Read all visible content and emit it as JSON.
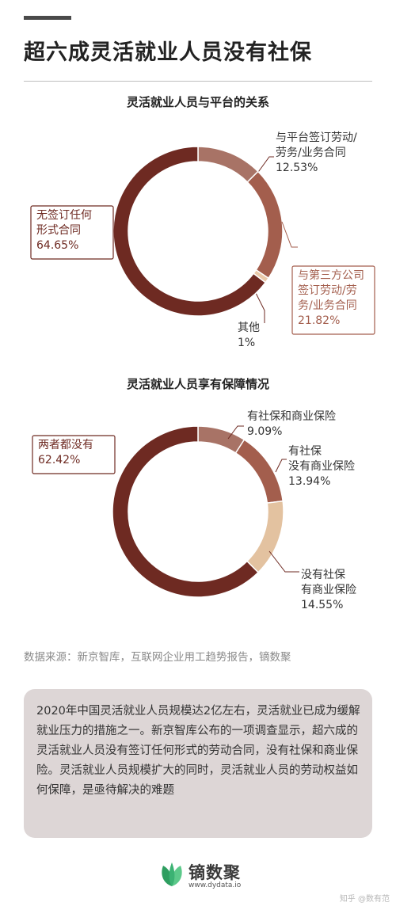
{
  "header": {
    "title": "超六成灵活就业人员没有社保"
  },
  "chart_data": [
    {
      "type": "pie",
      "title": "灵活就业人员与平台的关系",
      "series": [
        {
          "values": [
            12.53,
            21.82,
            1,
            64.65
          ]
        }
      ],
      "slices": [
        {
          "label": [
            "与平台签订劳动/",
            "劳务/业务合同"
          ],
          "value": 12.53,
          "value_text": "12.53%",
          "color": "#a87366"
        },
        {
          "label": [
            "与第三方公司",
            "签订劳动/劳",
            "务/业务合同"
          ],
          "value": 21.82,
          "value_text": "21.82%",
          "color": "#a35e4d"
        },
        {
          "label": [
            "其他"
          ],
          "value": 1,
          "value_text": "1%",
          "color": "#e9c9a9"
        },
        {
          "label": [
            "无签订任何",
            "形式合同"
          ],
          "value": 64.65,
          "value_text": "64.65%",
          "color": "#6e2a22"
        }
      ]
    },
    {
      "type": "pie",
      "title": "灵活就业人员享有保障情况",
      "series": [
        {
          "values": [
            9.09,
            13.94,
            14.55,
            62.42
          ]
        }
      ],
      "slices": [
        {
          "label": [
            "有社保和商业保险"
          ],
          "value": 9.09,
          "value_text": "9.09%",
          "color": "#a87366"
        },
        {
          "label": [
            "有社保",
            "没有商业保险"
          ],
          "value": 13.94,
          "value_text": "13.94%",
          "color": "#a35e4d"
        },
        {
          "label": [
            "没有社保",
            "有商业保险"
          ],
          "value": 14.55,
          "value_text": "14.55%",
          "color": "#e3c2a0"
        },
        {
          "label": [
            "两者都没有"
          ],
          "value": 62.42,
          "value_text": "62.42%",
          "color": "#6e2a22"
        }
      ]
    }
  ],
  "source": {
    "text": "数据来源：新京智库，互联网企业用工趋势报告，镝数聚"
  },
  "summary": {
    "text": "2020年中国灵活就业人员规模达2亿左右，灵活就业已成为缓解就业压力的措施之一。新京智库公布的一项调查显示，超六成的灵活就业人员没有签订任何形式的劳动合同，没有社保和商业保险。灵活就业人员规模扩大的同时，灵活就业人员的劳动权益如何保障，是亟待解决的难题"
  },
  "logo": {
    "name": "镝数聚",
    "url": "www.dydata.io"
  },
  "watermark": {
    "text": "知乎 @数有范"
  },
  "colors": {
    "label_dark": "#6e2a22",
    "label_accent": "#a35e4d",
    "leader": "#6e2a22",
    "logo_green": "#3bb273"
  }
}
